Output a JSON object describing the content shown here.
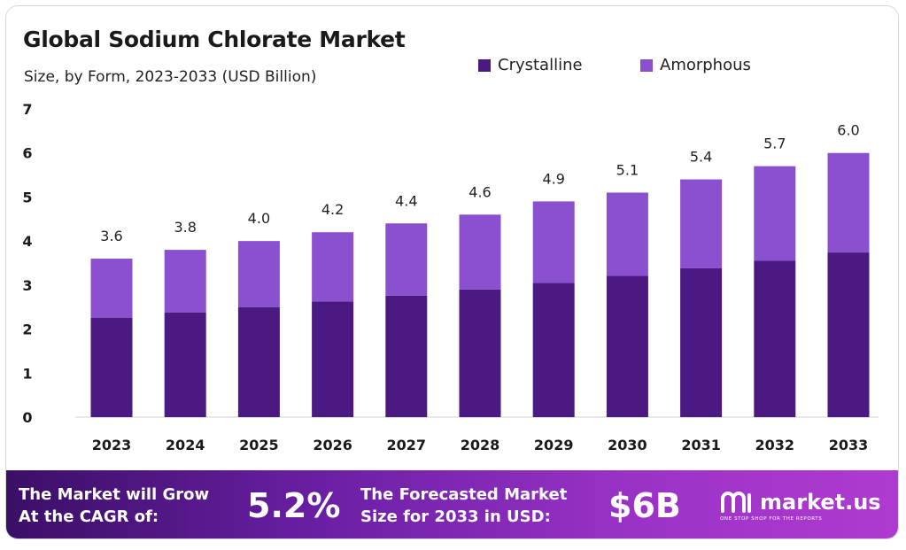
{
  "header": {
    "title": "Global Sodium Chlorate Market",
    "subtitle": "Size, by Form, 2023-2033 (USD Billion)"
  },
  "colors": {
    "crystalline": "#4a1a82",
    "amorphous": "#8b50d0",
    "footer_start": "#3a0f66",
    "footer_end": "#b03ad0"
  },
  "chart_data": {
    "type": "bar",
    "stacked": true,
    "categories": [
      "2023",
      "2024",
      "2025",
      "2026",
      "2027",
      "2028",
      "2029",
      "2030",
      "2031",
      "2032",
      "2033"
    ],
    "series": [
      {
        "name": "Crystalline",
        "values": [
          2.26,
          2.38,
          2.5,
          2.63,
          2.76,
          2.9,
          3.05,
          3.21,
          3.38,
          3.55,
          3.74
        ]
      },
      {
        "name": "Amorphous",
        "values": [
          1.34,
          1.42,
          1.5,
          1.57,
          1.64,
          1.7,
          1.85,
          1.89,
          2.02,
          2.15,
          2.26
        ]
      }
    ],
    "totals": [
      "3.6",
      "3.8",
      "4.0",
      "4.2",
      "4.4",
      "4.6",
      "4.9",
      "5.1",
      "5.4",
      "5.7",
      "6.0"
    ],
    "ylim": [
      0,
      7
    ],
    "yticks": [
      "0",
      "1",
      "2",
      "3",
      "4",
      "5",
      "6",
      "7"
    ],
    "grid": false,
    "legend_position": "top-right",
    "title": "Global Sodium Chlorate Market",
    "subtitle": "Size, by Form, 2023-2033 (USD Billion)",
    "xlabel": "",
    "ylabel": ""
  },
  "footer": {
    "cagr_line1": "The Market will Grow",
    "cagr_line2": "At the CAGR of:",
    "cagr_value": "5.2%",
    "forecast_line1": "The Forecasted Market",
    "forecast_line2": "Size for 2033 in USD:",
    "forecast_value": "$6B",
    "brand_name": "market.us",
    "brand_tagline": "ONE STOP SHOP FOR THE REPORTS",
    "brand_icon": "market-us-logo-icon"
  }
}
